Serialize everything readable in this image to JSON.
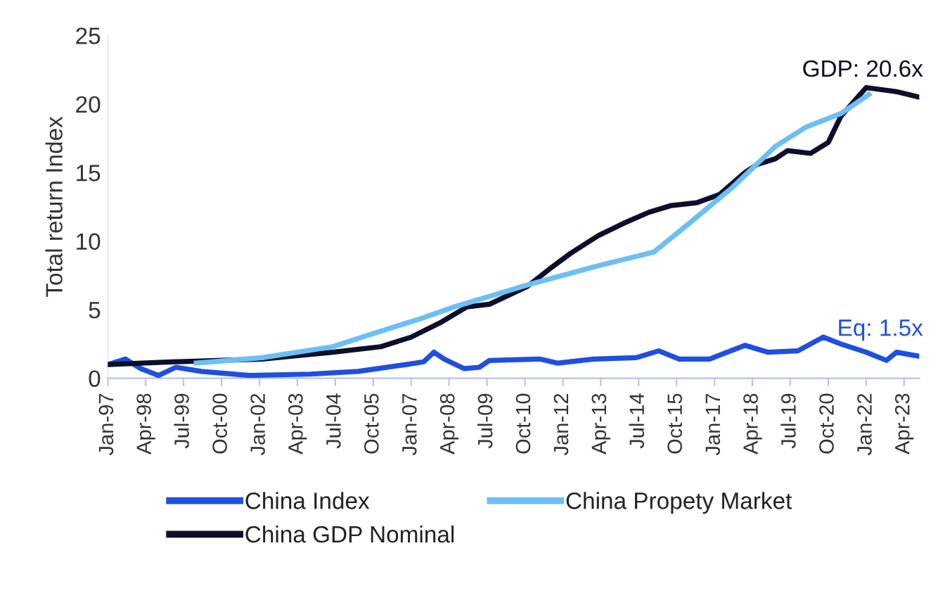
{
  "chart_data": {
    "type": "line",
    "ylabel": "Total return Index",
    "xlim": [
      "1997-01",
      "2023-10"
    ],
    "ylim": [
      0,
      25
    ],
    "yticks": [
      0,
      5,
      10,
      15,
      20,
      25
    ],
    "xticks": [
      {
        "value": "1997-01",
        "label": "Jan-97"
      },
      {
        "value": "1998-04",
        "label": "Apr-98"
      },
      {
        "value": "1999-07",
        "label": "Jul-99"
      },
      {
        "value": "2000-10",
        "label": "Oct-00"
      },
      {
        "value": "2002-01",
        "label": "Jan-02"
      },
      {
        "value": "2003-04",
        "label": "Apr-03"
      },
      {
        "value": "2004-07",
        "label": "Jul-04"
      },
      {
        "value": "2005-10",
        "label": "Oct-05"
      },
      {
        "value": "2007-01",
        "label": "Jan-07"
      },
      {
        "value": "2008-04",
        "label": "Apr-08"
      },
      {
        "value": "2009-07",
        "label": "Jul-09"
      },
      {
        "value": "2010-10",
        "label": "Oct-10"
      },
      {
        "value": "2012-01",
        "label": "Jan-12"
      },
      {
        "value": "2013-04",
        "label": "Apr-13"
      },
      {
        "value": "2014-07",
        "label": "Jul-14"
      },
      {
        "value": "2015-10",
        "label": "Oct-15"
      },
      {
        "value": "2017-01",
        "label": "Jan-17"
      },
      {
        "value": "2018-04",
        "label": "Apr-18"
      },
      {
        "value": "2019-07",
        "label": "Jul-19"
      },
      {
        "value": "2020-10",
        "label": "Oct-20"
      },
      {
        "value": "2022-01",
        "label": "Jan-22"
      },
      {
        "value": "2023-04",
        "label": "Apr-23"
      }
    ],
    "grid": false,
    "legend": "bottom",
    "marker": "none",
    "line_style": "solid",
    "series": [
      {
        "name": "China Index",
        "color": "#1f4fe0",
        "x": [
          "1997-01",
          "1997-08",
          "1998-02",
          "1998-09",
          "1999-04",
          "2000-02",
          "2001-09",
          "2003-09",
          "2005-04",
          "2006-11",
          "2007-06",
          "2007-10",
          "2008-02",
          "2008-10",
          "2009-04",
          "2009-08",
          "2011-04",
          "2011-11",
          "2013-01",
          "2014-06",
          "2015-03",
          "2015-11",
          "2016-11",
          "2018-01",
          "2018-10",
          "2019-10",
          "2020-08",
          "2021-03",
          "2022-01",
          "2022-09",
          "2023-01",
          "2023-10"
        ],
        "values": [
          1.0,
          1.4,
          0.7,
          0.2,
          0.8,
          0.5,
          0.2,
          0.3,
          0.5,
          1.0,
          1.2,
          1.9,
          1.4,
          0.7,
          0.8,
          1.3,
          1.4,
          1.1,
          1.4,
          1.5,
          2.0,
          1.4,
          1.4,
          2.4,
          1.9,
          2.0,
          3.0,
          2.5,
          1.9,
          1.3,
          1.9,
          1.6
        ]
      },
      {
        "name": "China GDP Nominal",
        "color": "#0b0f2a",
        "x": [
          "1997-01",
          "1999-04",
          "2002-02",
          "2004-06",
          "2006-01",
          "2007-01",
          "2008-01",
          "2008-11",
          "2009-08",
          "2010-11",
          "2011-08",
          "2012-04",
          "2013-03",
          "2014-01",
          "2014-11",
          "2015-08",
          "2016-06",
          "2017-03",
          "2018-01",
          "2018-06",
          "2019-01",
          "2019-06",
          "2020-03",
          "2020-10",
          "2021-03",
          "2022-01",
          "2023-01",
          "2023-10"
        ],
        "values": [
          1.0,
          1.2,
          1.4,
          1.9,
          2.3,
          3.0,
          4.1,
          5.2,
          5.4,
          6.7,
          8.0,
          9.1,
          10.4,
          11.3,
          12.1,
          12.6,
          12.8,
          13.4,
          15.0,
          15.6,
          16.0,
          16.6,
          16.4,
          17.2,
          19.1,
          21.2,
          20.9,
          20.5
        ]
      },
      {
        "name": "China Propety Market",
        "color": "#6cbff5",
        "x": [
          "1999-12",
          "2002-02",
          "2004-06",
          "2005-09",
          "2007-04",
          "2008-06",
          "2010-11",
          "2013-03",
          "2015-01",
          "2016-03",
          "2017-08",
          "2019-01",
          "2020-01",
          "2021-03",
          "2022-02"
        ],
        "values": [
          1.1,
          1.5,
          2.3,
          3.2,
          4.3,
          5.2,
          6.8,
          8.2,
          9.2,
          11.3,
          13.9,
          16.9,
          18.3,
          19.3,
          20.7
        ]
      }
    ],
    "annotations": [
      {
        "text": "GDP: 20.6x",
        "x": "2023-10",
        "y": 20.5
      },
      {
        "text": "Eq: 1.5x",
        "x": "2023-10",
        "y": 1.6
      }
    ]
  }
}
